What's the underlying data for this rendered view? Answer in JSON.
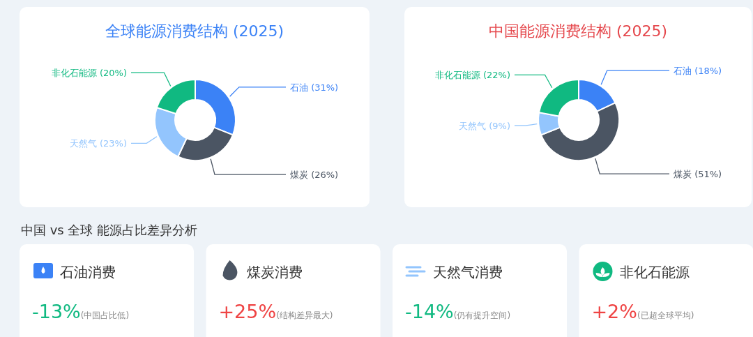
{
  "chart_data": [
    {
      "type": "donut",
      "title": "全球能源消费结构 (2025)",
      "categories": [
        "石油",
        "煤炭",
        "天然气",
        "非化石能源"
      ],
      "values": [
        31,
        26,
        23,
        20
      ],
      "value_labels": [
        "(31%)",
        "(26%)",
        "(23%)",
        "(20%)"
      ],
      "colors": [
        "#3b82f6",
        "#4b5563",
        "#93c5fd",
        "#10b981"
      ]
    },
    {
      "type": "donut",
      "title": "中国能源消费结构 (2025)",
      "categories": [
        "石油",
        "煤炭",
        "天然气",
        "非化石能源"
      ],
      "values": [
        18,
        51,
        9,
        22
      ],
      "value_labels": [
        "(18%)",
        "(51%)",
        "(9%)",
        "(22%)"
      ],
      "colors": [
        "#3b82f6",
        "#4b5563",
        "#93c5fd",
        "#10b981"
      ]
    },
    {
      "type": "other",
      "title": "中国 vs 全球 能源占比差异分析",
      "annotations": [
        "石油消费",
        "-13%",
        "(中国占比低)",
        "煤炭消费",
        "+25%",
        "(结构差异最大)",
        "天然气消费",
        "-14%",
        "(仍有提升空间)",
        "非化石能源",
        "+2%",
        "(已超全球平均)"
      ],
      "colors": [
        "#10b981",
        "#ef4444",
        "#10b981",
        "#ef4444"
      ]
    }
  ]
}
